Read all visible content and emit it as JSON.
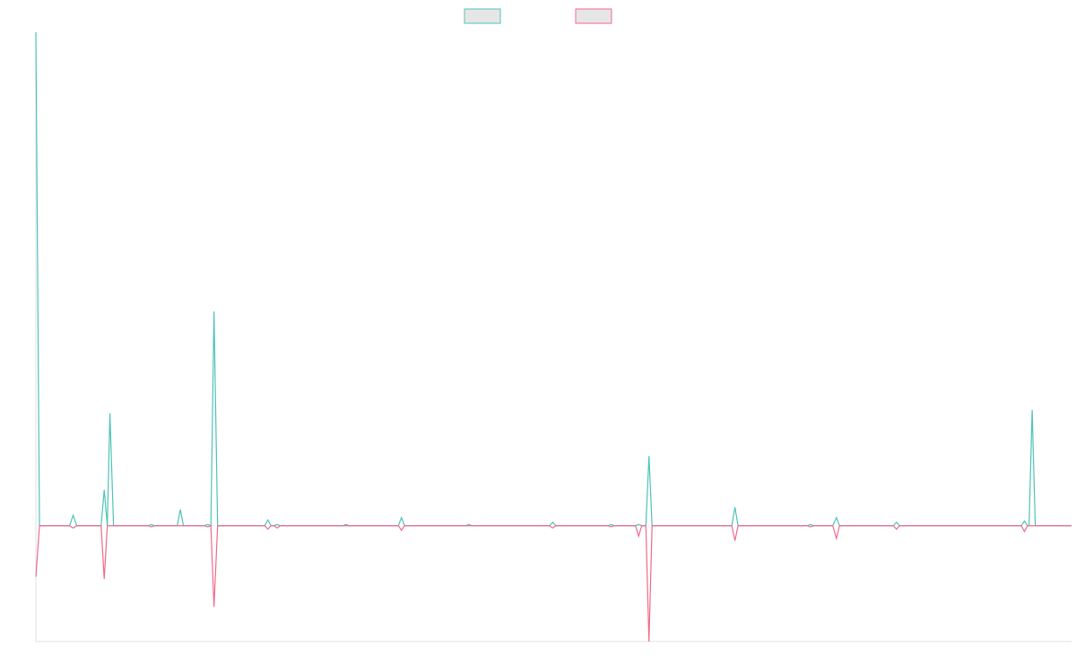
{
  "chart_data": {
    "type": "line",
    "title": "",
    "xlabel": "",
    "ylabel": "",
    "legend": {
      "placement": "top-center",
      "entries": [
        {
          "color": "#4ec3b8"
        },
        {
          "color": "#f06a8c"
        }
      ]
    },
    "grid": false,
    "xlim": [
      0,
      200
    ],
    "ylim": [
      -100,
      426
    ],
    "series": [
      {
        "color": "#4ec3b8",
        "points": [
          [
            0,
            426
          ],
          [
            0.7,
            0
          ],
          [
            6.5,
            0
          ],
          [
            7.2,
            9
          ],
          [
            7.9,
            0
          ],
          [
            12.6,
            0
          ],
          [
            13.2,
            31
          ],
          [
            13.8,
            0
          ],
          [
            14.3,
            97
          ],
          [
            15,
            0
          ],
          [
            21.7,
            0
          ],
          [
            22.3,
            1
          ],
          [
            22.9,
            0
          ],
          [
            27.3,
            0
          ],
          [
            27.9,
            14
          ],
          [
            28.5,
            0
          ],
          [
            32.5,
            0
          ],
          [
            33.2,
            1
          ],
          [
            33.8,
            0
          ],
          [
            34.4,
            185
          ],
          [
            35.1,
            0
          ],
          [
            44.2,
            0
          ],
          [
            44.8,
            5
          ],
          [
            45.4,
            0
          ],
          [
            46,
            0
          ],
          [
            46.6,
            1
          ],
          [
            47.2,
            0
          ],
          [
            59.3,
            0
          ],
          [
            59.9,
            1
          ],
          [
            60.5,
            0
          ],
          [
            70,
            0
          ],
          [
            70.6,
            7
          ],
          [
            71.2,
            0
          ],
          [
            83,
            0
          ],
          [
            83.6,
            1
          ],
          [
            84.2,
            0
          ],
          [
            99.2,
            0
          ],
          [
            99.8,
            3
          ],
          [
            100.4,
            0
          ],
          [
            110.5,
            0
          ],
          [
            111.1,
            1
          ],
          [
            111.7,
            0
          ],
          [
            115.8,
            0
          ],
          [
            116.4,
            1
          ],
          [
            117,
            0
          ],
          [
            117.8,
            0
          ],
          [
            118.4,
            60
          ],
          [
            119,
            0
          ],
          [
            134.4,
            0
          ],
          [
            135,
            16
          ],
          [
            135.6,
            0
          ],
          [
            149,
            0
          ],
          [
            149.6,
            1
          ],
          [
            150.2,
            0
          ],
          [
            153.9,
            0
          ],
          [
            154.6,
            7
          ],
          [
            155.2,
            0
          ],
          [
            165.6,
            0
          ],
          [
            166.2,
            3
          ],
          [
            166.8,
            0
          ],
          [
            190.3,
            0
          ],
          [
            190.9,
            4
          ],
          [
            191.5,
            0
          ],
          [
            191.8,
            0
          ],
          [
            192.4,
            100
          ],
          [
            193,
            0
          ],
          [
            200,
            0
          ]
        ]
      },
      {
        "color": "#f06a8c",
        "points": [
          [
            0,
            -44
          ],
          [
            0.7,
            0
          ],
          [
            6.5,
            0
          ],
          [
            7.2,
            -2
          ],
          [
            7.9,
            0
          ],
          [
            12.6,
            0
          ],
          [
            13.2,
            -46
          ],
          [
            13.8,
            0
          ],
          [
            21.7,
            0
          ],
          [
            22.3,
            -1
          ],
          [
            22.9,
            0
          ],
          [
            32.5,
            0
          ],
          [
            33.2,
            -1
          ],
          [
            33.8,
            0
          ],
          [
            34.4,
            -70
          ],
          [
            35.1,
            0
          ],
          [
            44.2,
            0
          ],
          [
            44.8,
            -3
          ],
          [
            45.4,
            0
          ],
          [
            46,
            0
          ],
          [
            46.6,
            -2
          ],
          [
            47.2,
            0
          ],
          [
            70,
            0
          ],
          [
            70.6,
            -4
          ],
          [
            71.2,
            0
          ],
          [
            99.2,
            0
          ],
          [
            99.8,
            -2
          ],
          [
            100.4,
            0
          ],
          [
            110.5,
            0
          ],
          [
            111.1,
            -1
          ],
          [
            111.7,
            0
          ],
          [
            115.8,
            0
          ],
          [
            116.4,
            -9
          ],
          [
            117,
            0
          ],
          [
            117.8,
            0
          ],
          [
            118.4,
            -100
          ],
          [
            119,
            0
          ],
          [
            134.4,
            0
          ],
          [
            135,
            -13
          ],
          [
            135.6,
            0
          ],
          [
            149,
            0
          ],
          [
            149.6,
            -1
          ],
          [
            150.2,
            0
          ],
          [
            153.9,
            0
          ],
          [
            154.6,
            -11
          ],
          [
            155.2,
            0
          ],
          [
            165.6,
            0
          ],
          [
            166.2,
            -3
          ],
          [
            166.8,
            0
          ],
          [
            190.3,
            0
          ],
          [
            190.9,
            -5
          ],
          [
            191.5,
            0
          ],
          [
            200,
            0
          ]
        ]
      }
    ]
  }
}
